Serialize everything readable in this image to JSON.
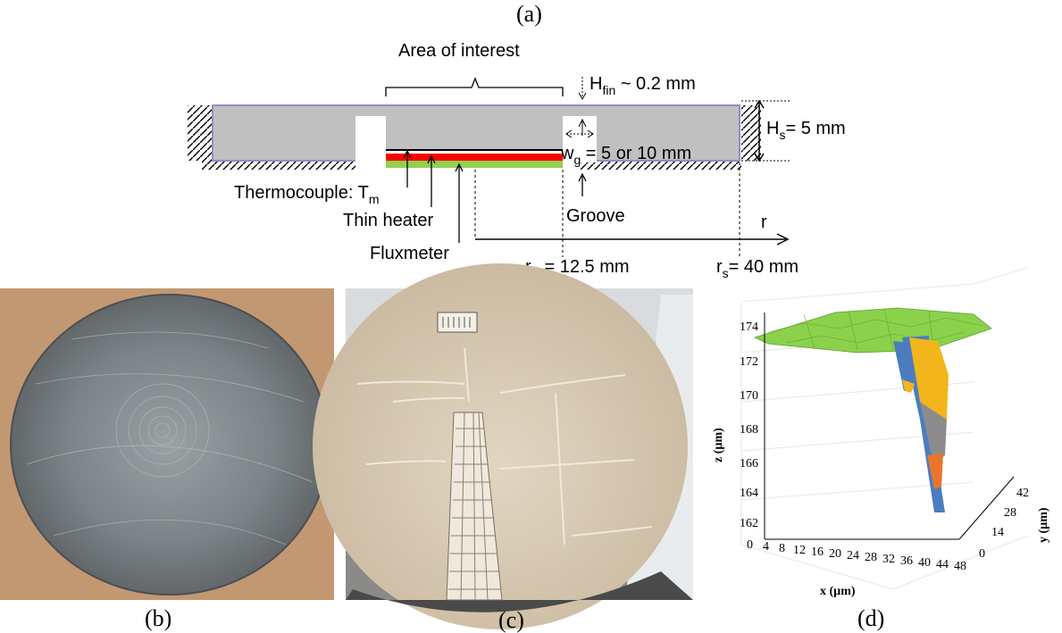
{
  "captions": {
    "a": "(a)",
    "b": "(b)",
    "c": "(c)",
    "d": "(d)"
  },
  "diagram": {
    "area_of_interest": "Area of interest",
    "h_fin": {
      "symbol": "H",
      "sub": "fin",
      "rest": " ~ 0.2 mm"
    },
    "h_s": {
      "symbol": "H",
      "sub": "s",
      "rest": "= 5 mm"
    },
    "w_g": {
      "symbol": "w",
      "sub": "g",
      "rest": " = 5 or 10 mm"
    },
    "thermocouple": {
      "text": "Thermocouple: T",
      "sub": "m"
    },
    "thin_heater": "Thin heater",
    "fluxmeter": "Fluxmeter",
    "groove": "Groove",
    "r_axis": "r",
    "r_int": {
      "symbol": "r",
      "sub": "int",
      "rest": "= 12.5 mm"
    },
    "r_s": {
      "symbol": "r",
      "sub": "s",
      "rest": "= 40 mm"
    },
    "colors": {
      "plate": "#c0c0c0",
      "plate_edge": "#8e8ec8",
      "heater": "#ff0000",
      "fluxmeter": "#92d050"
    }
  },
  "plot3d": {
    "zlabel": "z (µm)",
    "xlabel": "x (µm)",
    "ylabel": "y (µm)",
    "z_ticks": [
      "174",
      "172",
      "170",
      "168",
      "166",
      "164",
      "162"
    ],
    "x_ticks": [
      "0",
      "4",
      "8",
      "12",
      "16",
      "20",
      "24",
      "28",
      "32",
      "36",
      "40",
      "44",
      "48"
    ],
    "y_ticks": [
      "42",
      "28",
      "14",
      "0"
    ]
  }
}
